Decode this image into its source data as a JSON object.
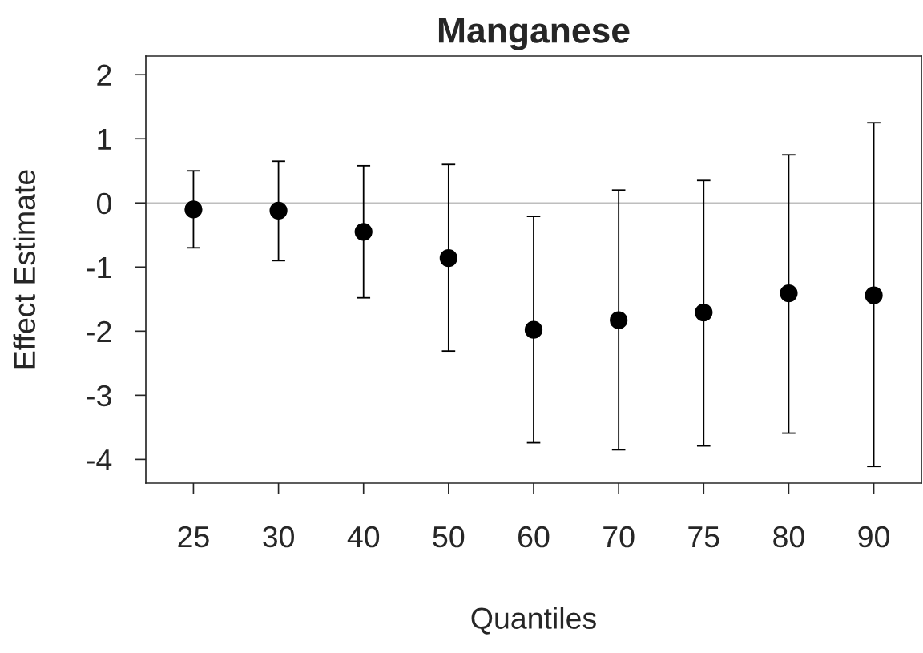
{
  "chart_data": {
    "type": "scatter",
    "title": "Manganese",
    "xlabel": "Quantiles",
    "ylabel": "Effect Estimate",
    "categories": [
      "25",
      "30",
      "40",
      "50",
      "60",
      "70",
      "75",
      "80",
      "90"
    ],
    "series": [
      {
        "color": "#000000",
        "values": [
          -0.1,
          -0.12,
          -0.45,
          -0.86,
          -1.98,
          -1.83,
          -1.71,
          -1.41,
          -1.44
        ],
        "errors": [
          [
            -0.7,
            0.5
          ],
          [
            -0.9,
            0.65
          ],
          [
            -1.48,
            0.58
          ],
          [
            -2.31,
            0.6
          ],
          [
            -3.74,
            -0.21
          ],
          [
            -3.85,
            0.2
          ],
          [
            -3.79,
            0.35
          ],
          [
            -3.59,
            0.75
          ],
          [
            -4.11,
            1.25
          ]
        ]
      }
    ],
    "ylim": [
      -4.37,
      2.29
    ],
    "yticks": [
      -4,
      -3,
      -2,
      -1,
      0,
      1,
      2
    ],
    "ref_lines": [
      {
        "axis": "y",
        "value": 0,
        "color": "#bebebe"
      }
    ],
    "marker": "circle",
    "grid": false,
    "legend": false
  }
}
